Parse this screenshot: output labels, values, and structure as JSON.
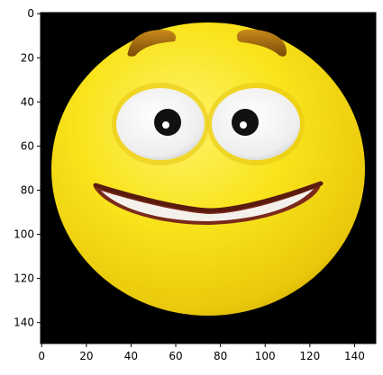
{
  "axes": {
    "x_ticks": [
      0,
      20,
      40,
      60,
      80,
      100,
      120,
      140
    ],
    "y_ticks": [
      0,
      20,
      40,
      60,
      80,
      100,
      120,
      140
    ],
    "xlim": [
      -0.5,
      149.5
    ],
    "ylim": [
      149.5,
      -0.5
    ],
    "y_inverted": true
  },
  "image": {
    "subject": "emoji-face-icon",
    "background_color": "#000000",
    "face_color": "#f8e21a"
  }
}
